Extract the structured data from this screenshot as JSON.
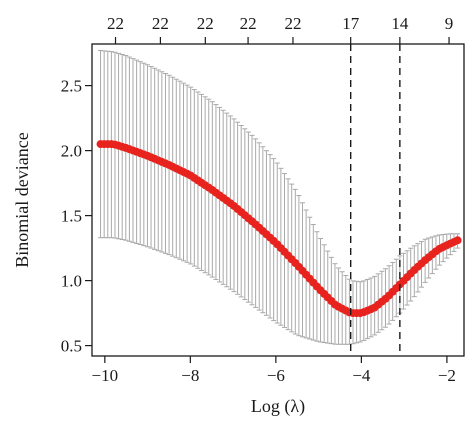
{
  "chart_data": {
    "type": "line",
    "title": "",
    "xlabel": "Log (λ)",
    "ylabel": "Binomial deviance",
    "xlim": [
      -10.3,
      -1.6
    ],
    "ylim": [
      0.42,
      2.82
    ],
    "x_ticks": [
      -10,
      -8,
      -6,
      -4,
      -2
    ],
    "x_tick_labels": [
      "−10",
      "−8",
      "−6",
      "−4",
      "−2"
    ],
    "y_ticks": [
      0.5,
      1.0,
      1.5,
      2.0,
      2.5
    ],
    "y_tick_labels": [
      "0.5",
      "1.0",
      "1.5",
      "2.0",
      "2.5"
    ],
    "top_axis": {
      "positions": [
        -10,
        -9.1,
        -8.2,
        -7.3,
        -6.4,
        -5.5,
        -4.6,
        -3.7,
        -2.8,
        -1.9
      ],
      "labels": [
        "22",
        "22",
        "22",
        "22",
        "22",
        "17",
        "14",
        "9"
      ],
      "label_positions": [
        -9.75,
        -8.7,
        -7.65,
        -6.65,
        -5.6,
        -4.25,
        -3.1,
        -1.95
      ]
    },
    "reference_lines": [
      -4.25,
      -3.1
    ],
    "series": [
      {
        "x_range": [
          -10.1,
          -1.75
        ],
        "points": 100,
        "mean": [
          [
            -10.1,
            2.05
          ],
          [
            -9.8,
            2.05
          ],
          [
            -9.5,
            2.02
          ],
          [
            -9.0,
            1.96
          ],
          [
            -8.5,
            1.89
          ],
          [
            -8.0,
            1.81
          ],
          [
            -7.5,
            1.7
          ],
          [
            -7.0,
            1.58
          ],
          [
            -6.5,
            1.44
          ],
          [
            -6.0,
            1.29
          ],
          [
            -5.5,
            1.12
          ],
          [
            -5.0,
            0.94
          ],
          [
            -4.6,
            0.81
          ],
          [
            -4.25,
            0.75
          ],
          [
            -4.0,
            0.75
          ],
          [
            -3.7,
            0.79
          ],
          [
            -3.4,
            0.87
          ],
          [
            -3.1,
            0.97
          ],
          [
            -2.8,
            1.07
          ],
          [
            -2.5,
            1.16
          ],
          [
            -2.2,
            1.24
          ],
          [
            -1.95,
            1.28
          ],
          [
            -1.75,
            1.31
          ]
        ],
        "upper": [
          [
            -10.1,
            2.77
          ],
          [
            -9.8,
            2.76
          ],
          [
            -9.5,
            2.73
          ],
          [
            -9.0,
            2.66
          ],
          [
            -8.5,
            2.58
          ],
          [
            -8.0,
            2.49
          ],
          [
            -7.5,
            2.38
          ],
          [
            -7.0,
            2.25
          ],
          [
            -6.5,
            2.1
          ],
          [
            -6.0,
            1.92
          ],
          [
            -5.5,
            1.68
          ],
          [
            -5.0,
            1.35
          ],
          [
            -4.6,
            1.12
          ],
          [
            -4.25,
            1.0
          ],
          [
            -4.0,
            0.99
          ],
          [
            -3.7,
            1.03
          ],
          [
            -3.4,
            1.1
          ],
          [
            -3.1,
            1.19
          ],
          [
            -2.8,
            1.26
          ],
          [
            -2.5,
            1.32
          ],
          [
            -2.2,
            1.35
          ],
          [
            -1.95,
            1.36
          ],
          [
            -1.75,
            1.36
          ]
        ],
        "lower": [
          [
            -10.1,
            1.33
          ],
          [
            -9.8,
            1.33
          ],
          [
            -9.5,
            1.31
          ],
          [
            -9.0,
            1.26
          ],
          [
            -8.5,
            1.2
          ],
          [
            -8.0,
            1.13
          ],
          [
            -7.5,
            1.03
          ],
          [
            -7.0,
            0.92
          ],
          [
            -6.5,
            0.8
          ],
          [
            -6.0,
            0.68
          ],
          [
            -5.5,
            0.58
          ],
          [
            -5.0,
            0.53
          ],
          [
            -4.6,
            0.51
          ],
          [
            -4.25,
            0.51
          ],
          [
            -4.0,
            0.53
          ],
          [
            -3.7,
            0.58
          ],
          [
            -3.4,
            0.65
          ],
          [
            -3.1,
            0.75
          ],
          [
            -2.8,
            0.86
          ],
          [
            -2.5,
            0.99
          ],
          [
            -2.2,
            1.11
          ],
          [
            -1.95,
            1.19
          ],
          [
            -1.75,
            1.25
          ]
        ]
      }
    ],
    "colors": {
      "points": "#e8231e",
      "error_bars": "#a9a9a9",
      "axes": "#1a1a1a",
      "reference_lines": "#1a1a1a"
    },
    "grid": false,
    "legend": "none"
  }
}
